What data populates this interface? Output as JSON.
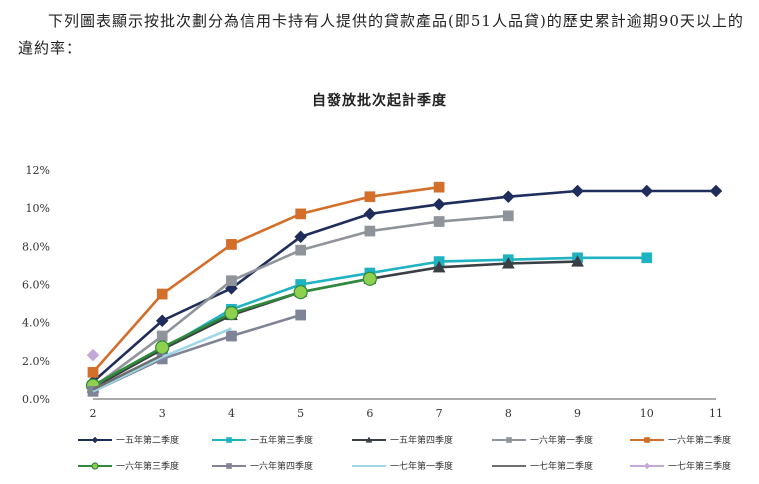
{
  "intro_text": "下列圖表顯示按批次劃分為信用卡持有人提供的貸款產品(即51人品貸)的歷史累計逾期90天以上的違約率：",
  "chart_data": {
    "type": "line",
    "title": "自發放批次起計季度",
    "xlabel": "",
    "ylabel": "",
    "x": [
      2,
      3,
      4,
      5,
      6,
      7,
      8,
      9,
      10,
      11
    ],
    "y_ticks": [
      "0.0%",
      "2.0%",
      "4.0%",
      "6.0%",
      "8.0%",
      "10%",
      "12%"
    ],
    "ylim": [
      0,
      12
    ],
    "grid": false,
    "legend_position": "bottom",
    "series": [
      {
        "name": "一五年第二季度",
        "color": "#1f2d5c",
        "marker": "diamond",
        "x": [
          2,
          3,
          4,
          5,
          6,
          7,
          8,
          9,
          10,
          11
        ],
        "values": [
          0.9,
          4.1,
          5.8,
          8.5,
          9.7,
          10.2,
          10.6,
          10.9,
          10.9,
          10.9
        ]
      },
      {
        "name": "一五年第三季度",
        "color": "#1fb3c1",
        "marker": "square",
        "x": [
          2,
          3,
          4,
          5,
          6,
          7,
          8,
          9,
          10
        ],
        "values": [
          0.7,
          2.6,
          4.7,
          6.0,
          6.6,
          7.2,
          7.3,
          7.4,
          7.4
        ]
      },
      {
        "name": "一五年第四季度",
        "color": "#3a3f45",
        "marker": "triangle",
        "x": [
          2,
          3,
          4,
          5,
          6,
          7,
          8,
          9
        ],
        "values": [
          0.6,
          2.6,
          4.4,
          5.6,
          6.3,
          6.9,
          7.1,
          7.2
        ]
      },
      {
        "name": "一六年第一季度",
        "color": "#8f949b",
        "marker": "square",
        "x": [
          2,
          3,
          4,
          5,
          6,
          7,
          8
        ],
        "values": [
          0.6,
          3.3,
          6.2,
          7.8,
          8.8,
          9.3,
          9.6
        ]
      },
      {
        "name": "一六年第二季度",
        "color": "#d36f2b",
        "marker": "square",
        "x": [
          2,
          3,
          4,
          5,
          6,
          7
        ],
        "values": [
          1.4,
          5.5,
          8.1,
          9.7,
          10.6,
          11.1
        ]
      },
      {
        "name": "一六年第三季度",
        "color": "#2f8a3b",
        "marker": "circle",
        "x": [
          2,
          3,
          4,
          5,
          6
        ],
        "values": [
          0.7,
          2.7,
          4.5,
          5.6,
          6.3
        ]
      },
      {
        "name": "一六年第四季度",
        "color": "#7f8496",
        "marker": "square",
        "x": [
          2,
          3,
          4,
          5
        ],
        "values": [
          0.4,
          2.1,
          3.3,
          4.4
        ]
      },
      {
        "name": "一七年第一季度",
        "color": "#9fd6ea",
        "marker": "none",
        "x": [
          2,
          3,
          4
        ],
        "values": [
          0.4,
          2.2,
          3.7
        ]
      },
      {
        "name": "一七年第二季度",
        "color": "#6e6e6e",
        "marker": "none",
        "x": [
          2,
          3
        ],
        "values": [
          0.5,
          2.3
        ]
      },
      {
        "name": "一七年第三季度",
        "color": "#c4a9d8",
        "marker": "diamond",
        "x": [
          2
        ],
        "values": [
          2.3
        ]
      }
    ]
  }
}
